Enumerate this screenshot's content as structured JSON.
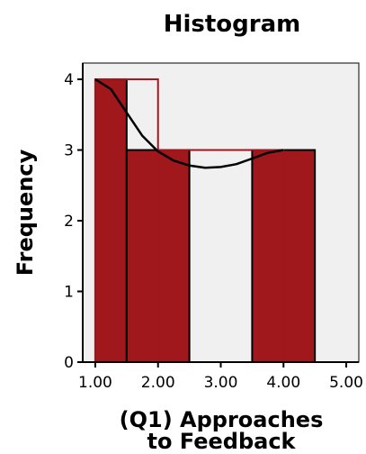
{
  "chart_data": {
    "type": "bar",
    "title": "Histogram",
    "xlabel_lines": [
      "(Q1) Approaches",
      "to Feedback"
    ],
    "ylabel": "Frequency",
    "x_ticks": [
      "1.00",
      "2.00",
      "3.00",
      "4.00",
      "5.00"
    ],
    "y_ticks": [
      "0",
      "1",
      "2",
      "3",
      "4"
    ],
    "xlim": [
      0.8,
      5.2
    ],
    "ylim": [
      0,
      4.23
    ],
    "bins": [
      {
        "start": 1.0,
        "end": 1.5,
        "count": 4
      },
      {
        "start": 1.5,
        "end": 2.5,
        "count": 3
      },
      {
        "start": 2.5,
        "end": 3.5,
        "count": 0
      },
      {
        "start": 3.5,
        "end": 4.5,
        "count": 3
      }
    ],
    "outline_steps": [
      {
        "start": 1.0,
        "end": 2.0,
        "count": 4
      },
      {
        "start": 2.0,
        "end": 4.0,
        "count": 3
      }
    ],
    "normal_curve": {
      "x": [
        1.0,
        1.25,
        1.5,
        1.75,
        2.0,
        2.25,
        2.5,
        2.75,
        3.0,
        3.25,
        3.5,
        3.75,
        4.0
      ],
      "y": [
        4.0,
        3.86,
        3.53,
        3.2,
        2.98,
        2.85,
        2.78,
        2.75,
        2.76,
        2.8,
        2.88,
        2.96,
        3.0
      ]
    },
    "grid": false,
    "colors": {
      "bar_fill": "#a0171c",
      "outline": "#a0171c",
      "plot_bg": "#f0f0f0",
      "curve": "#000000"
    }
  }
}
